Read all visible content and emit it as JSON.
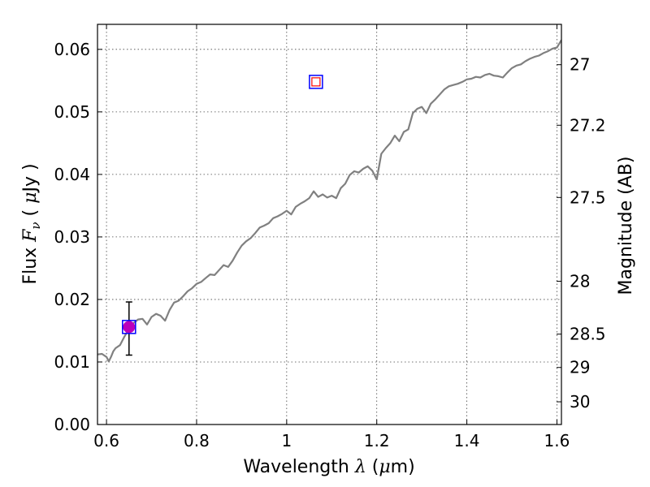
{
  "chart_data": {
    "type": "line",
    "xlabel": {
      "prefix": "Wavelength  ",
      "symbol": "λ",
      "suffix": " (",
      "unit_symbol": "μ",
      "unit_rest": "m)"
    },
    "ylabel": {
      "prefix": "Flux  ",
      "symbol": "F",
      "subscript": "ν",
      "suffix": "  ( ",
      "unit_symbol": "μ",
      "unit_rest": "Jy )"
    },
    "y2label": "Magnitude (AB)",
    "xlim": [
      0.58,
      1.61
    ],
    "ylim": [
      0.0,
      0.064
    ],
    "grid": true,
    "x_ticks": [
      {
        "value": 0.6,
        "label": "0.6"
      },
      {
        "value": 0.8,
        "label": "0.8"
      },
      {
        "value": 1.0,
        "label": "1"
      },
      {
        "value": 1.2,
        "label": "1.2"
      },
      {
        "value": 1.4,
        "label": "1.4"
      },
      {
        "value": 1.6,
        "label": "1.6"
      }
    ],
    "y_ticks": [
      {
        "value": 0.0,
        "label": "0.00"
      },
      {
        "value": 0.01,
        "label": "0.01"
      },
      {
        "value": 0.02,
        "label": "0.02"
      },
      {
        "value": 0.03,
        "label": "0.03"
      },
      {
        "value": 0.04,
        "label": "0.04"
      },
      {
        "value": 0.05,
        "label": "0.05"
      },
      {
        "value": 0.06,
        "label": "0.06"
      }
    ],
    "y2_ticks": [
      {
        "value": 27.0,
        "label": "27"
      },
      {
        "value": 27.2,
        "label": "27.2"
      },
      {
        "value": 27.5,
        "label": "27.5"
      },
      {
        "value": 28.0,
        "label": "28"
      },
      {
        "value": 28.5,
        "label": "28.5"
      },
      {
        "value": 29.0,
        "label": "29"
      },
      {
        "value": 30.0,
        "label": "30"
      }
    ],
    "series": [
      {
        "type": "line",
        "color": "#808080",
        "x": [
          0.58,
          0.59,
          0.6,
          0.605,
          0.61,
          0.615,
          0.62,
          0.63,
          0.64,
          0.65,
          0.66,
          0.67,
          0.68,
          0.69,
          0.7,
          0.71,
          0.72,
          0.73,
          0.74,
          0.75,
          0.76,
          0.77,
          0.78,
          0.79,
          0.8,
          0.81,
          0.82,
          0.83,
          0.84,
          0.85,
          0.86,
          0.87,
          0.88,
          0.89,
          0.9,
          0.91,
          0.92,
          0.93,
          0.94,
          0.95,
          0.96,
          0.97,
          0.98,
          0.99,
          1.0,
          1.01,
          1.02,
          1.03,
          1.04,
          1.05,
          1.06,
          1.07,
          1.08,
          1.09,
          1.1,
          1.11,
          1.12,
          1.13,
          1.14,
          1.15,
          1.16,
          1.17,
          1.18,
          1.19,
          1.2,
          1.21,
          1.22,
          1.23,
          1.24,
          1.25,
          1.26,
          1.27,
          1.28,
          1.29,
          1.3,
          1.31,
          1.32,
          1.33,
          1.34,
          1.35,
          1.36,
          1.37,
          1.38,
          1.39,
          1.4,
          1.41,
          1.42,
          1.43,
          1.44,
          1.45,
          1.46,
          1.47,
          1.48,
          1.49,
          1.5,
          1.51,
          1.52,
          1.53,
          1.54,
          1.55,
          1.56,
          1.57,
          1.58,
          1.59,
          1.6,
          1.61
        ],
        "y": [
          0.0112,
          0.0113,
          0.0108,
          0.0101,
          0.0108,
          0.0117,
          0.0122,
          0.0127,
          0.0141,
          0.0153,
          0.0162,
          0.0168,
          0.0169,
          0.016,
          0.0172,
          0.0177,
          0.0174,
          0.0166,
          0.0183,
          0.0195,
          0.0198,
          0.0205,
          0.0213,
          0.0218,
          0.0225,
          0.0228,
          0.0234,
          0.024,
          0.0239,
          0.0247,
          0.0255,
          0.0252,
          0.0262,
          0.0275,
          0.0286,
          0.0293,
          0.0298,
          0.0306,
          0.0315,
          0.0318,
          0.0322,
          0.033,
          0.0333,
          0.0337,
          0.0342,
          0.0336,
          0.0348,
          0.0353,
          0.0357,
          0.0362,
          0.0373,
          0.0364,
          0.0368,
          0.0363,
          0.0366,
          0.0362,
          0.0378,
          0.0385,
          0.0399,
          0.0405,
          0.0403,
          0.0409,
          0.0413,
          0.0406,
          0.0392,
          0.0433,
          0.0442,
          0.045,
          0.0462,
          0.0453,
          0.0468,
          0.0472,
          0.0498,
          0.0505,
          0.0508,
          0.0498,
          0.0513,
          0.052,
          0.0528,
          0.0536,
          0.0541,
          0.0543,
          0.0545,
          0.0548,
          0.0552,
          0.0553,
          0.0556,
          0.0555,
          0.0559,
          0.0561,
          0.0558,
          0.0557,
          0.0555,
          0.0563,
          0.057,
          0.0574,
          0.0576,
          0.0581,
          0.0585,
          0.0588,
          0.059,
          0.0594,
          0.0597,
          0.0601,
          0.0603,
          0.0615
        ]
      },
      {
        "type": "errorbar-point",
        "marker": "circle-in-square",
        "fill_color": "#bb00bb",
        "square_color": "#0000ff",
        "x": 0.65,
        "y": 0.0156,
        "yerr_low": 0.0111,
        "yerr_high": 0.0196
      },
      {
        "type": "point",
        "marker": "square-in-square",
        "inner_color": "#ff0000",
        "outer_color": "#0000ff",
        "x": 1.065,
        "y": 0.0548
      }
    ]
  }
}
